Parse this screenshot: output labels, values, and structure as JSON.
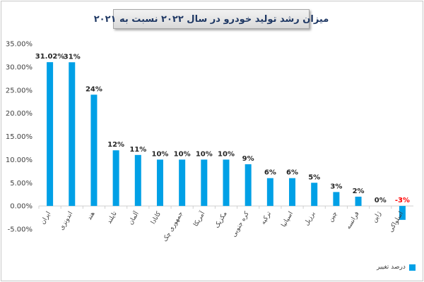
{
  "chart_data": {
    "type": "bar",
    "title": "میزان رشد تولید خودرو در سال ۲۰۲۲ نسبت به ۲۰۲۱",
    "categories": [
      "ایران",
      "اندونزی",
      "هند",
      "تایلند",
      "آلمان",
      "کانادا",
      "جمهوری چک",
      "آمریکا",
      "مکزیک",
      "کره جنوبی",
      "ترکیه",
      "اسپانیا",
      "برزیل",
      "چین",
      "فرانسه",
      "ژاپن",
      "اسلواکی"
    ],
    "values": [
      31.02,
      31,
      24,
      12,
      11,
      10,
      10,
      10,
      10,
      9,
      6,
      6,
      5,
      3,
      2,
      0,
      -3
    ],
    "data_labels": [
      "31.02%",
      "31%",
      "24%",
      "12%",
      "11%",
      "10%",
      "10%",
      "10%",
      "10%",
      "9%",
      "6%",
      "6%",
      "5%",
      "3%",
      "2%",
      "0%",
      "-3%"
    ],
    "y_ticks": [
      35,
      30,
      25,
      20,
      15,
      10,
      5,
      0,
      -5
    ],
    "y_tick_labels": [
      "35.00%",
      "30.00%",
      "25.00%",
      "20.00%",
      "15.00%",
      "10.00%",
      "5.00%",
      "0.00%",
      "-5.00%"
    ],
    "ylim": [
      -5,
      35
    ],
    "xlabel": "",
    "ylabel": "",
    "grid": false,
    "legend_position": "bottom-right",
    "series": [
      {
        "name": "درصد تغییر"
      }
    ],
    "colors": {
      "bar": "#00a0e6",
      "negative_label": "#ff0000",
      "label": "#262626",
      "axis": "#404040",
      "title": "#1f3864"
    }
  }
}
